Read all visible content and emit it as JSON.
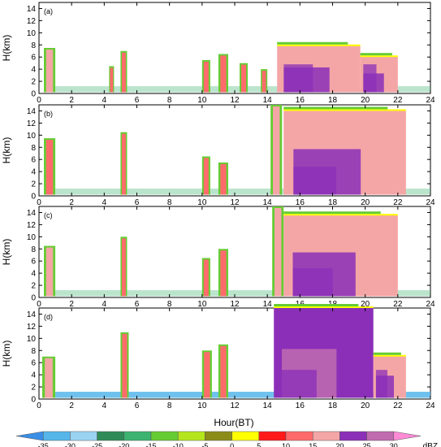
{
  "chart_data": [
    {
      "type": "heatmap",
      "panel_label": "(a)",
      "ylabel": "H(km)",
      "xlim": [
        0,
        24
      ],
      "ylim": [
        0,
        15
      ],
      "xticks": [
        0,
        2,
        4,
        6,
        8,
        10,
        12,
        14,
        16,
        18,
        20,
        22,
        24
      ],
      "yticks": [
        0,
        2,
        4,
        6,
        8,
        10,
        12,
        14
      ],
      "echo_regions": [
        {
          "x": [
            0.3,
            1.0
          ],
          "ymax": 7.5,
          "dbz": 15
        },
        {
          "x": [
            4.3,
            4.6
          ],
          "ymax": 4.5,
          "dbz": 10
        },
        {
          "x": [
            5.0,
            5.4
          ],
          "ymax": 7.0,
          "dbz": 10
        },
        {
          "x": [
            10.0,
            10.5
          ],
          "ymax": 5.5,
          "dbz": 10
        },
        {
          "x": [
            11.0,
            11.6
          ],
          "ymax": 6.5,
          "dbz": 10
        },
        {
          "x": [
            12.3,
            12.8
          ],
          "ymax": 5.0,
          "dbz": 10
        },
        {
          "x": [
            13.6,
            14.0
          ],
          "ymax": 4.0,
          "dbz": 10
        },
        {
          "x": [
            14.6,
            19.7
          ],
          "ymax": 7.8,
          "dbz": 15
        },
        {
          "x": [
            19.7,
            22.0
          ],
          "ymax": 6.0,
          "dbz": 15
        }
      ]
    },
    {
      "type": "heatmap",
      "panel_label": "(b)",
      "ylabel": "H(km)",
      "xlim": [
        0,
        24
      ],
      "ylim": [
        0,
        15
      ],
      "xticks": [
        0,
        2,
        4,
        6,
        8,
        10,
        12,
        14,
        16,
        18,
        20,
        22,
        24
      ],
      "yticks": [
        0,
        2,
        4,
        6,
        8,
        10,
        12,
        14
      ],
      "echo_regions": [
        {
          "x": [
            0.3,
            1.0
          ],
          "ymax": 9.5,
          "dbz": 10
        },
        {
          "x": [
            5.0,
            5.4
          ],
          "ymax": 10.5,
          "dbz": 10
        },
        {
          "x": [
            10.0,
            10.5
          ],
          "ymax": 6.5,
          "dbz": 10
        },
        {
          "x": [
            11.0,
            11.6
          ],
          "ymax": 5.5,
          "dbz": 10
        },
        {
          "x": [
            14.2,
            14.9
          ],
          "ymax": 15.0,
          "dbz": 15
        },
        {
          "x": [
            15.0,
            22.5
          ],
          "ymax": 14.0,
          "dbz": 15
        }
      ]
    },
    {
      "type": "heatmap",
      "panel_label": "(c)",
      "ylabel": "H(km)",
      "xlim": [
        0,
        24
      ],
      "ylim": [
        0,
        15
      ],
      "xticks": [
        0,
        2,
        4,
        6,
        8,
        10,
        12,
        14,
        16,
        18,
        20,
        22,
        24
      ],
      "yticks": [
        0,
        2,
        4,
        6,
        8,
        10,
        12,
        14
      ],
      "echo_regions": [
        {
          "x": [
            0.3,
            1.0
          ],
          "ymax": 8.5,
          "dbz": 15
        },
        {
          "x": [
            5.0,
            5.4
          ],
          "ymax": 10.0,
          "dbz": 10
        },
        {
          "x": [
            10.0,
            10.5
          ],
          "ymax": 6.5,
          "dbz": 10
        },
        {
          "x": [
            11.0,
            11.6
          ],
          "ymax": 8.0,
          "dbz": 10
        },
        {
          "x": [
            14.3,
            15.0
          ],
          "ymax": 15.0,
          "dbz": 15
        },
        {
          "x": [
            15.0,
            22.0
          ],
          "ymax": 13.5,
          "dbz": 15
        }
      ]
    },
    {
      "type": "heatmap",
      "panel_label": "(d)",
      "ylabel": "H(km)",
      "xlabel": "Hour(BT)",
      "xlim": [
        0,
        24
      ],
      "ylim": [
        0,
        15
      ],
      "xticks": [
        0,
        2,
        4,
        6,
        8,
        10,
        12,
        14,
        16,
        18,
        20,
        22,
        24
      ],
      "yticks": [
        0,
        2,
        4,
        6,
        8,
        10,
        12,
        14
      ],
      "echo_regions": [
        {
          "x": [
            0.2,
            1.0
          ],
          "ymax": 7.0,
          "dbz": 15
        },
        {
          "x": [
            5.0,
            5.5
          ],
          "ymax": 11.0,
          "dbz": 10
        },
        {
          "x": [
            10.0,
            10.6
          ],
          "ymax": 8.0,
          "dbz": 10
        },
        {
          "x": [
            11.0,
            11.6
          ],
          "ymax": 9.0,
          "dbz": 10
        },
        {
          "x": [
            14.4,
            20.5
          ],
          "ymax": 15.0,
          "dbz": 20
        },
        {
          "x": [
            20.5,
            22.5
          ],
          "ymax": 7.0,
          "dbz": 15
        }
      ]
    }
  ],
  "colorbar": {
    "unit": "dBZ",
    "levels": [
      "-35",
      "-30",
      "-25",
      "-20",
      "-15",
      "-10",
      "-5",
      "0",
      "5",
      "10",
      "15",
      "20",
      "25",
      "30"
    ],
    "colors": [
      "#3a8ee6",
      "#56b6ea",
      "#9ad3f2",
      "#2e8b57",
      "#3cb371",
      "#66cc33",
      "#b5e61d",
      "#8b8b1a",
      "#ffff00",
      "#ff1a1a",
      "#ff6b6b",
      "#f4a6a6",
      "#8b2fb8",
      "#c06bb0",
      "#ff8ad6"
    ]
  }
}
